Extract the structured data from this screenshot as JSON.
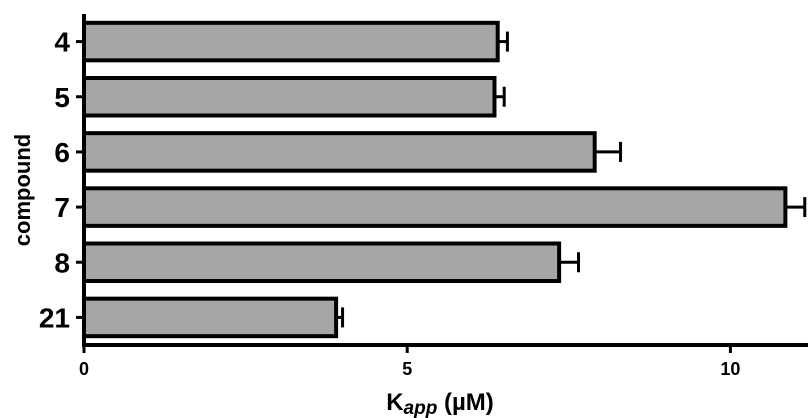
{
  "chart_data": {
    "type": "bar",
    "orientation": "horizontal",
    "categories": [
      "4",
      "5",
      "6",
      "7",
      "8",
      "21"
    ],
    "values": [
      6.4,
      6.35,
      7.9,
      10.85,
      7.35,
      3.9
    ],
    "errors": [
      0.15,
      0.15,
      0.4,
      0.3,
      0.3,
      0.1
    ],
    "ylabel": "compound",
    "xlabel_main": "K",
    "xlabel_sub": "app",
    "xlabel_unit": " (µM)",
    "xlim": [
      0,
      11.2
    ],
    "xticks": [
      0,
      5,
      10
    ],
    "bar_color": "#a6a6a6",
    "bar_edge_color": "#000000",
    "grid": false
  }
}
